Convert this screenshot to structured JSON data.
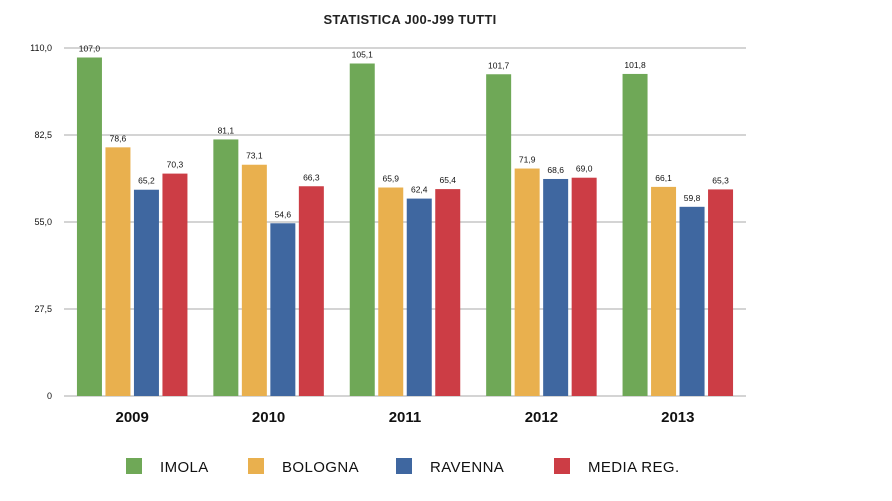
{
  "chart_data": {
    "type": "bar",
    "title": "STATISTICA J00-J99 TUTTI",
    "categories": [
      "2009",
      "2010",
      "2011",
      "2012",
      "2013"
    ],
    "series": [
      {
        "name": "IMOLA",
        "color": "#6fa857",
        "values": [
          107.0,
          81.1,
          105.1,
          101.7,
          101.8
        ],
        "labels": [
          "107,0",
          "81,1",
          "105,1",
          "101,7",
          "101,8"
        ]
      },
      {
        "name": "BOLOGNA",
        "color": "#e9b04e",
        "values": [
          78.6,
          73.1,
          65.9,
          71.9,
          66.1
        ],
        "labels": [
          "78,6",
          "73,1",
          "65,9",
          "71,9",
          "66,1"
        ]
      },
      {
        "name": "RAVENNA",
        "color": "#3f67a0",
        "values": [
          65.2,
          54.6,
          62.4,
          68.6,
          59.8
        ],
        "labels": [
          "65,2",
          "54,6",
          "62,4",
          "68,6",
          "59,8"
        ]
      },
      {
        "name": "MEDIA REG.",
        "color": "#cc3d45",
        "values": [
          70.3,
          66.3,
          65.4,
          69.0,
          65.3
        ],
        "labels": [
          "70,3",
          "66,3",
          "65,4",
          "69,0",
          "65,3"
        ]
      }
    ],
    "ylim": [
      0,
      110
    ],
    "yticks": [
      0,
      27.5,
      55,
      82.5,
      110
    ],
    "ytick_labels": [
      "0",
      "27,5",
      "55,0",
      "82,5",
      "110,0"
    ],
    "grid": true,
    "legend_position": "bottom"
  }
}
